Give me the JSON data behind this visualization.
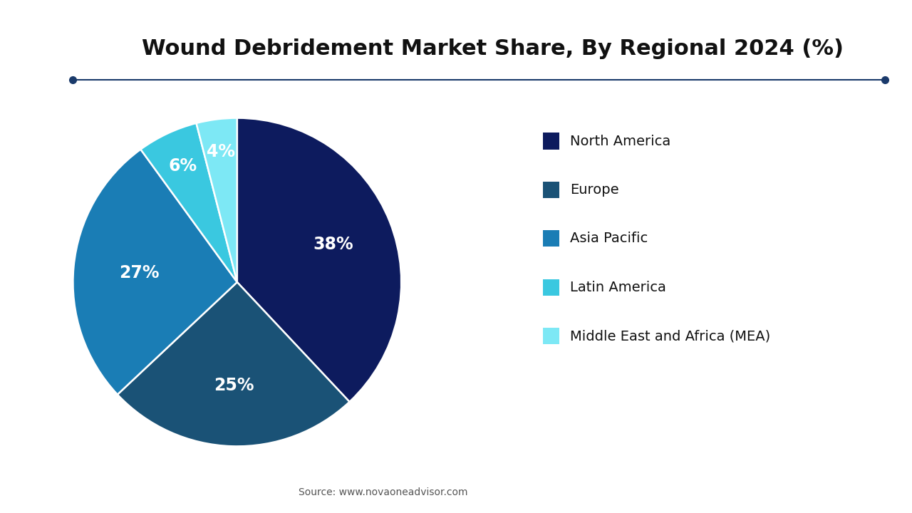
{
  "title": "Wound Debridement Market Share, By Regional 2024 (%)",
  "source": "Source: www.novaoneadvisor.com",
  "labels": [
    "North America",
    "Europe",
    "Asia Pacific",
    "Latin America",
    "Middle East and Africa (MEA)"
  ],
  "values": [
    38,
    25,
    27,
    6,
    4
  ],
  "colors": [
    "#0d1b5e",
    "#1a5276",
    "#1a7db5",
    "#3ac8e0",
    "#7de8f5"
  ],
  "pct_labels": [
    "38%",
    "25%",
    "27%",
    "6%",
    "4%"
  ],
  "startangle": 90,
  "background_color": "#ffffff",
  "title_fontsize": 22,
  "legend_fontsize": 14,
  "pct_fontsize": 17,
  "line_color": "#1a3a6b",
  "logo_bg_color": "#2060a0"
}
